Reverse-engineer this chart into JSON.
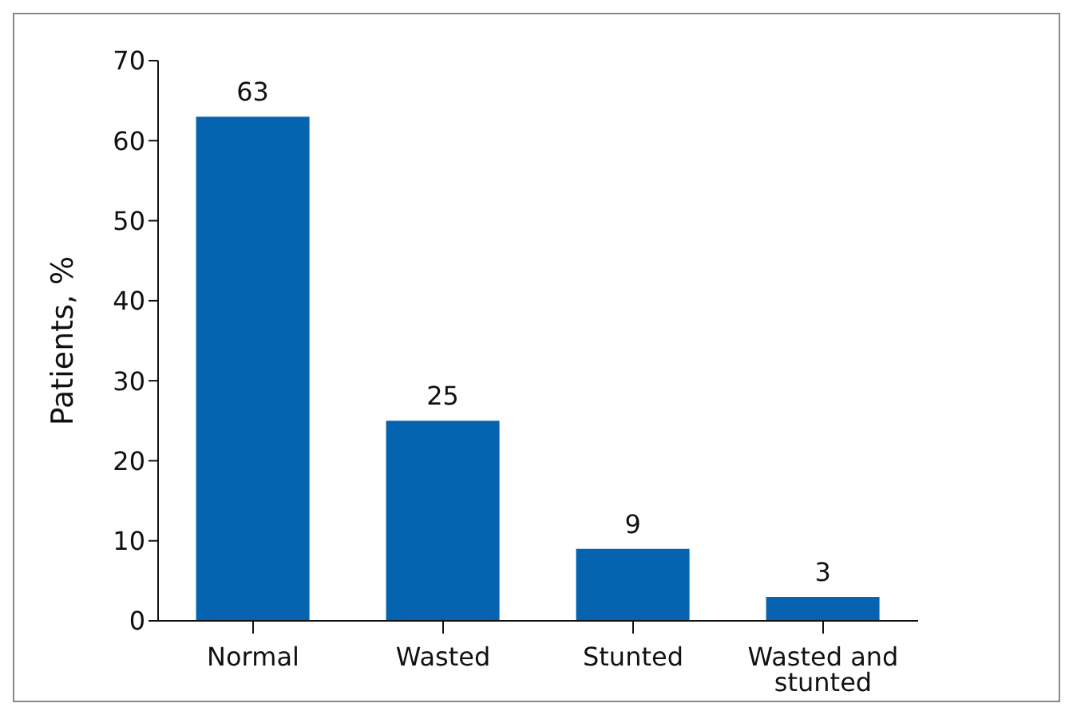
{
  "chart_data": {
    "type": "bar",
    "ylabel": "Patients, %",
    "categories": [
      "Normal",
      "Wasted",
      "Stunted",
      "Wasted and stunted"
    ],
    "values": [
      63,
      25,
      9,
      3
    ],
    "color": "#0563b0",
    "ylim": [
      0,
      70
    ],
    "yticks": [
      0,
      10,
      20,
      30,
      40,
      50,
      60,
      70
    ],
    "grid": false,
    "data_labels": true
  }
}
